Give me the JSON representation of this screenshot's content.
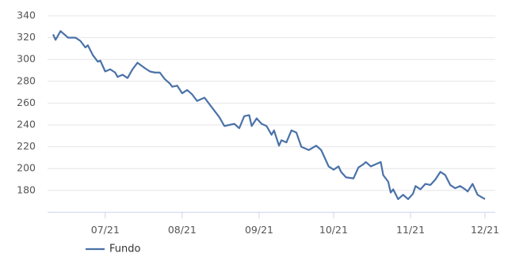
{
  "chart_data": {
    "type": "line",
    "x": [
      0,
      1,
      3,
      6,
      9,
      11,
      13,
      14,
      16,
      18,
      19,
      21,
      23,
      25,
      26,
      28,
      30,
      32,
      34,
      37,
      39,
      41,
      43,
      45,
      47,
      48,
      50,
      52,
      54,
      56,
      58,
      61,
      63,
      65,
      67,
      69,
      71,
      73,
      75,
      77,
      79,
      80,
      82,
      84,
      86,
      88,
      89,
      91,
      92,
      94,
      96,
      98,
      100,
      102,
      103,
      106,
      108,
      109,
      111,
      113,
      115,
      116,
      118,
      121,
      123,
      125,
      126,
      128,
      130,
      132,
      133,
      135,
      136,
      137,
      139,
      141,
      143,
      145,
      146,
      148,
      150,
      152,
      154,
      156,
      158,
      160,
      162,
      164,
      166,
      167,
      169,
      171,
      174
    ],
    "series": [
      {
        "name": "Fundo",
        "color": "#4a72a8",
        "values": [
          323,
          318,
          326,
          320,
          320,
          317,
          311,
          313,
          304,
          298,
          299,
          289,
          291,
          288,
          284,
          286,
          283,
          291,
          297,
          292,
          289,
          288,
          288,
          282,
          278,
          275,
          276,
          269,
          272,
          268,
          262,
          265,
          259,
          253,
          247,
          239,
          240,
          241,
          237,
          248,
          249,
          239,
          246,
          241,
          239,
          231,
          235,
          221,
          226,
          224,
          235,
          233,
          220,
          218,
          217,
          221,
          217,
          212,
          202,
          199,
          202,
          197,
          192,
          191,
          201,
          204,
          206,
          202,
          204,
          206,
          194,
          188,
          178,
          181,
          172,
          176,
          172,
          177,
          184,
          181,
          186,
          185,
          190,
          197,
          194,
          185,
          182,
          184,
          181,
          179,
          186,
          176,
          172
        ]
      }
    ],
    "xlim": [
      0,
      174
    ],
    "xticks": [
      {
        "value": 21,
        "label": "07/21"
      },
      {
        "value": 52,
        "label": "08/21"
      },
      {
        "value": 83,
        "label": "09/21"
      },
      {
        "value": 113,
        "label": "10/21"
      },
      {
        "value": 144,
        "label": "11/21"
      },
      {
        "value": 174,
        "label": "12/21"
      }
    ],
    "ylim": [
      160,
      340
    ],
    "yticks": [
      180,
      200,
      220,
      240,
      260,
      280,
      300,
      320,
      340
    ],
    "grid": true,
    "legend": "bottom-left"
  }
}
